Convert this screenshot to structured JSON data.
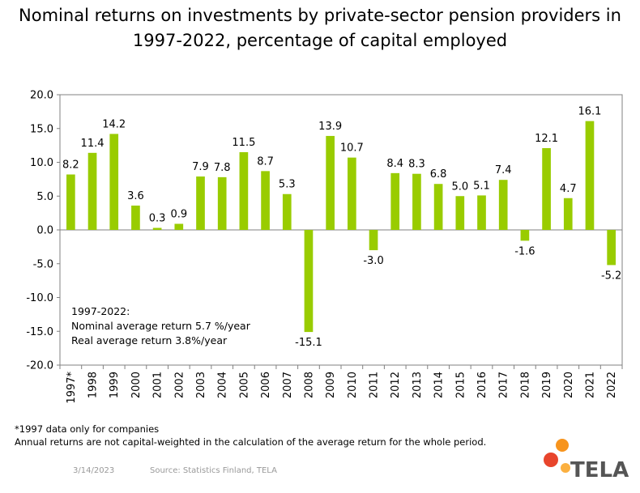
{
  "title_lines": [
    "Nominal returns on investments by private-sector pension providers in",
    "1997-2022, percentage of capital employed"
  ],
  "chart_data": {
    "type": "bar",
    "title": "Nominal returns on investments by private-sector pension providers in 1997-2022, percentage of capital employed",
    "categories": [
      "1997*",
      "1998",
      "1999",
      "2000",
      "2001",
      "2002",
      "2003",
      "2004",
      "2005",
      "2006",
      "2007",
      "2008",
      "2009",
      "2010",
      "2011",
      "2012",
      "2013",
      "2014",
      "2015",
      "2016",
      "2017",
      "2018",
      "2019",
      "2020",
      "2021",
      "2022"
    ],
    "values": [
      8.2,
      11.4,
      14.2,
      3.6,
      0.3,
      0.9,
      7.9,
      7.8,
      11.5,
      8.7,
      5.3,
      -15.1,
      13.9,
      10.7,
      -3.0,
      8.4,
      8.3,
      6.8,
      5.0,
      5.1,
      7.4,
      -1.6,
      12.1,
      4.7,
      16.1,
      -5.2
    ],
    "value_labels": [
      "8.2",
      "11.4",
      "14.2",
      "3.6",
      "0.3",
      "0.9",
      "7.9",
      "7.8",
      "11.5",
      "8.7",
      "5.3",
      "-15.1",
      "13.9",
      "10.7",
      "-3.0",
      "8.4",
      "8.3",
      "6.8",
      "5.0",
      "5.1",
      "7.4",
      "-1.6",
      "12.1",
      "4.7",
      "16.1",
      "-5.2"
    ],
    "ylim": [
      -20,
      20
    ],
    "yticks": [
      "20.0",
      "15.0",
      "10.0",
      "5.0",
      "0.0",
      "-5.0",
      "-10.0",
      "-15.0",
      "-20.0"
    ],
    "ytick_values": [
      20,
      15,
      10,
      5,
      0,
      -5,
      -10,
      -15,
      -20
    ],
    "xlabel": "",
    "ylabel": "",
    "bar_color": "#99cc00",
    "grid": false,
    "legend": "none"
  },
  "annotation_lines": [
    "1997-2022:",
    "Nominal average return 5.7 %/year",
    "Real average return 3.8%/year"
  ],
  "footnotes": [
    "*1997 data only for companies",
    "Annual returns are not capital-weighted in the calculation of the average return for the whole period."
  ],
  "footer": {
    "date": "3/14/2023",
    "source": "Source: Statistics Finland, TELA"
  },
  "logo": {
    "text": "TELA",
    "colors": [
      "#f7941d",
      "#e8452c",
      "#fbb040"
    ]
  }
}
